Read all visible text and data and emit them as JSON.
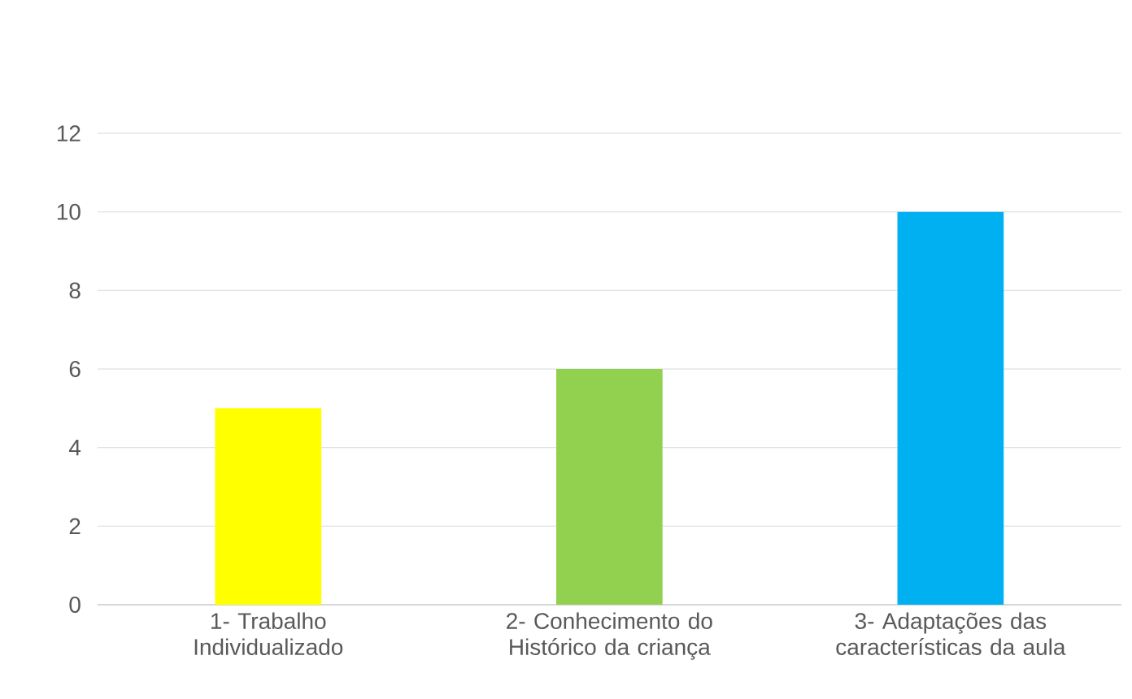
{
  "chart_data": {
    "type": "bar",
    "categories": [
      "1- Trabalho Individualizado",
      "2- Conhecimento do Histórico da criança",
      "3- Adaptações das características da aula"
    ],
    "values": [
      5,
      6,
      10
    ],
    "colors": [
      "#ffff00",
      "#92d050",
      "#00b0f0"
    ],
    "ylim": [
      0,
      12
    ],
    "yticks": [
      0,
      2,
      4,
      6,
      8,
      10,
      12
    ],
    "grid": "y"
  }
}
